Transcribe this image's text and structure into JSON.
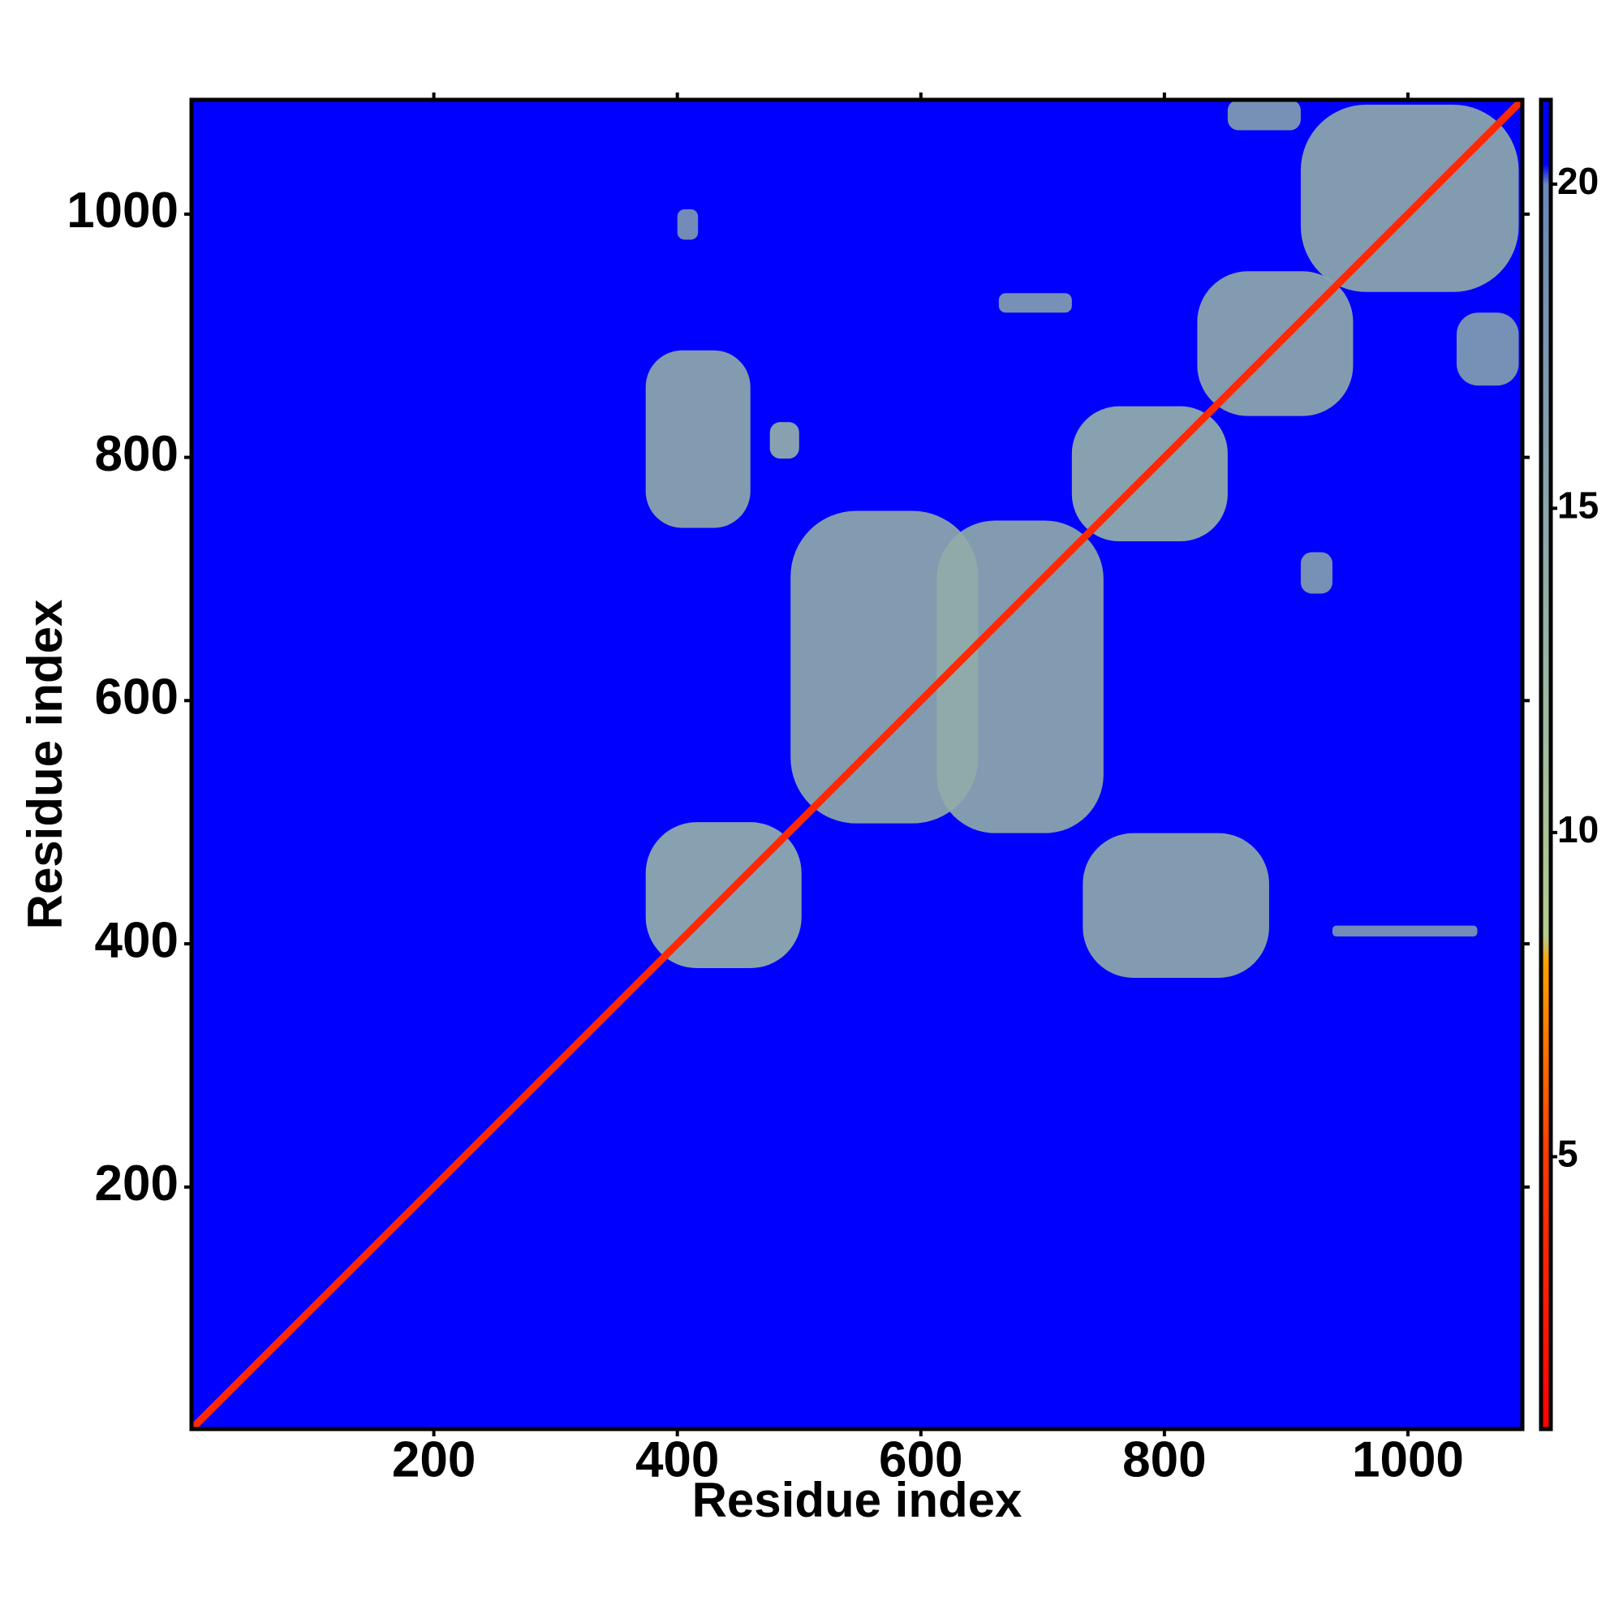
{
  "chart_data": {
    "type": "heatmap",
    "x_label": "Residue index",
    "y_label": "Residue index",
    "xlim": [
      1,
      1094
    ],
    "ylim": [
      1,
      1094
    ],
    "xticks": [
      200,
      400,
      600,
      800,
      1000
    ],
    "yticks": [
      200,
      400,
      600,
      800,
      1000
    ],
    "clim": [
      0.8,
      21.3
    ],
    "cticks": [
      5,
      10,
      15,
      20
    ],
    "colormap": [
      {
        "value": 0.8,
        "color": "#ff0000"
      },
      {
        "value": 5,
        "color": "#ff3a00"
      },
      {
        "value": 8,
        "color": "#ffa000"
      },
      {
        "value": 8.4,
        "color": "#b4cc8c"
      },
      {
        "value": 12,
        "color": "#9db8a4"
      },
      {
        "value": 20,
        "color": "#6b88b8"
      },
      {
        "value": 20.3,
        "color": "#0000ff"
      },
      {
        "value": 21.3,
        "color": "#0000ff"
      }
    ],
    "background": 21,
    "diagonal": {
      "from": 1,
      "to": 1094,
      "value": 3.8
    },
    "regions": [
      {
        "x": [
          374,
          460
        ],
        "y": [
          742,
          888
        ],
        "value": 14
      },
      {
        "x": [
          476,
          500
        ],
        "y": [
          799,
          829
        ],
        "value": 13
      },
      {
        "x": [
          493,
          647
        ],
        "y": [
          499,
          756
        ],
        "value": 14
      },
      {
        "x": [
          613,
          750
        ],
        "y": [
          491,
          748
        ],
        "value": 14
      },
      {
        "x": [
          374,
          502
        ],
        "y": [
          380,
          500
        ],
        "value": 13
      },
      {
        "x": [
          733,
          886
        ],
        "y": [
          372,
          491
        ],
        "value": 14
      },
      {
        "x": [
          724,
          852
        ],
        "y": [
          731,
          842
        ],
        "value": 13
      },
      {
        "x": [
          827,
          955
        ],
        "y": [
          834,
          953
        ],
        "value": 14
      },
      {
        "x": [
          912,
          1091
        ],
        "y": [
          936,
          1090
        ],
        "value": 14
      },
      {
        "x": [
          852,
          912
        ],
        "y": [
          1069,
          1094
        ],
        "value": 16
      },
      {
        "x": [
          664,
          724
        ],
        "y": [
          919,
          935
        ],
        "value": 16
      },
      {
        "x": [
          912,
          938
        ],
        "y": [
          688,
          722
        ],
        "value": 16
      },
      {
        "x": [
          400,
          417
        ],
        "y": [
          979,
          1004
        ],
        "value": 17
      },
      {
        "x": [
          1040,
          1091
        ],
        "y": [
          859,
          919
        ],
        "value": 16
      },
      {
        "x": [
          938,
          1057
        ],
        "y": [
          406,
          415
        ],
        "value": 17
      }
    ]
  }
}
